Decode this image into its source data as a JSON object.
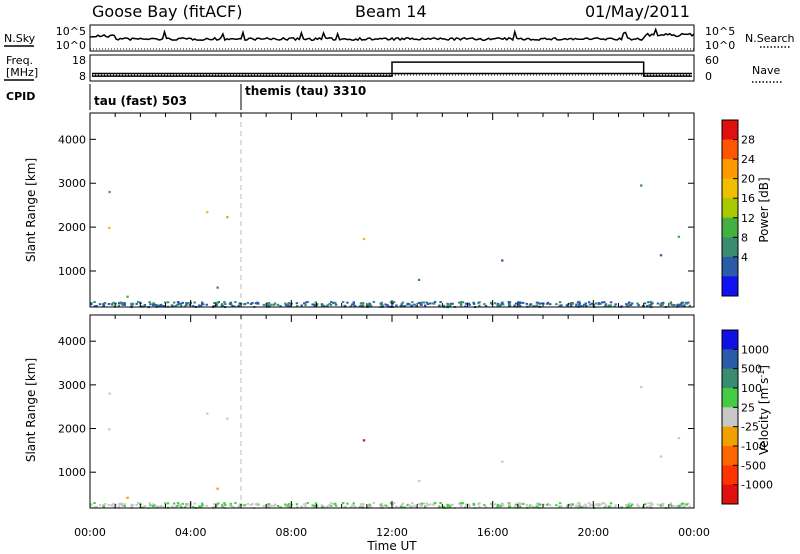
{
  "header": {
    "station": "Goose Bay (fitACF)",
    "beam": "Beam 14",
    "date": "01/May/2011"
  },
  "status_panels": {
    "nsky_label": "N.Sky",
    "nsearch_label": "N.Search",
    "noise_ticks": [
      "10^5",
      "10^0"
    ],
    "freq_label_1": "Freq.",
    "freq_label_2": "[MHz]",
    "freq_ticks": [
      "18",
      "8"
    ],
    "nave_label": "Nave",
    "nave_ticks": [
      "60",
      "0"
    ],
    "cpid_label": "CPID",
    "cpid_segments": [
      {
        "name": "tau (fast) 503",
        "start_hour": 0,
        "end_hour": 6
      },
      {
        "name": "themis (tau) 3310",
        "start_hour": 6,
        "end_hour": 24
      }
    ],
    "nave_step": {
      "low": 8,
      "high": 46,
      "start_hour": 12,
      "end_hour": 22
    },
    "freq_level": 10.5
  },
  "chart_data": [
    {
      "type": "heatmap",
      "quantity": "Power",
      "colorbar_label": "Power [dB]",
      "colorbar_ticks": [
        "28",
        "24",
        "20",
        "16",
        "12",
        "8",
        "4"
      ],
      "colorbar_colors": [
        "#e01010",
        "#ff5500",
        "#ff9900",
        "#f0c000",
        "#a8c800",
        "#44b040",
        "#3a8c70",
        "#2a5aa8",
        "#1010f0"
      ],
      "ylabel": "Slant Range [km]",
      "yticks": [
        1000,
        2000,
        3000,
        4000
      ],
      "ylim": [
        180,
        4600
      ],
      "xlim": [
        0,
        24
      ],
      "scatter_regions": [
        {
          "t0": 0.1,
          "t1": 5.5,
          "r0": 1500,
          "r1": 2650,
          "trend": "rising",
          "power": 18
        },
        {
          "t0": 0.3,
          "t1": 1.8,
          "r0": 2500,
          "r1": 3300,
          "trend": "flat",
          "power": 9
        },
        {
          "t0": 4.5,
          "t1": 6.0,
          "r0": 2750,
          "r1": 3100,
          "trend": "flat",
          "power": 10
        },
        {
          "t0": 9.2,
          "t1": 11.8,
          "r0": 1500,
          "r1": 2600,
          "trend": "falling",
          "power": 17
        },
        {
          "t0": 0.2,
          "t1": 8.0,
          "r0": 250,
          "r1": 800,
          "trend": "flat",
          "power": 10
        },
        {
          "t0": 20.0,
          "t1": 24.0,
          "r0": 1200,
          "r1": 3000,
          "trend": "flat",
          "power": 8
        },
        {
          "t0": 12.0,
          "t1": 20.0,
          "r0": 200,
          "r1": 1500,
          "trend": "flat",
          "power": 6
        }
      ]
    },
    {
      "type": "heatmap",
      "quantity": "Velocity",
      "colorbar_label": "Velocity [m s",
      "colorbar_ticks": [
        "1000",
        "500",
        "100",
        "25",
        "-25",
        "-100",
        "-500",
        "-1000"
      ],
      "colorbar_colors": [
        "#1010e0",
        "#2a5aa8",
        "#3a8c70",
        "#44cc44",
        "#c8c8c8",
        "#f0a000",
        "#ff6600",
        "#ff3300",
        "#e01010"
      ],
      "ylabel": "Slant Range [km]",
      "yticks": [
        1000,
        2000,
        3000,
        4000
      ],
      "ylim": [
        180,
        4600
      ],
      "xlim": [
        0,
        24
      ],
      "xlabel": "Time UT",
      "xticks": [
        "00:00",
        "04:00",
        "08:00",
        "12:00",
        "16:00",
        "20:00",
        "00:00"
      ]
    }
  ]
}
